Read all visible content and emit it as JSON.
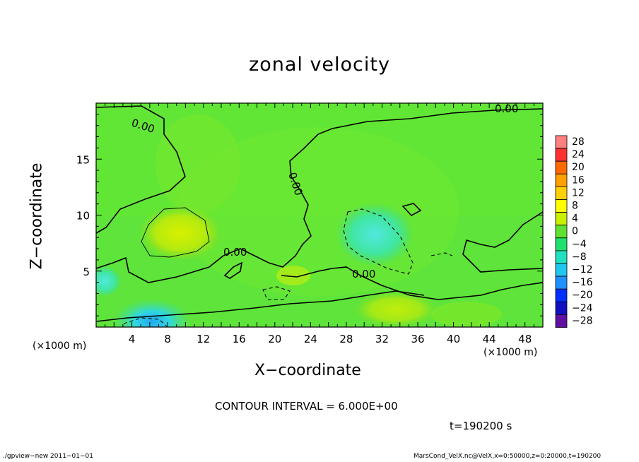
{
  "title": "zonal velocity",
  "chart_data": {
    "type": "heatmap",
    "title": "zonal velocity",
    "xlabel": "X−coordinate",
    "ylabel": "Z−coordinate",
    "x_unit": "(×1000 m)",
    "z_unit": "(×1000 m)",
    "xlim": [
      0,
      50
    ],
    "ylim": [
      0,
      20
    ],
    "x_ticks": [
      4,
      8,
      12,
      16,
      20,
      24,
      28,
      32,
      36,
      40,
      44,
      48
    ],
    "x_tick_labels": [
      "4",
      "8",
      "12",
      "16",
      "20",
      "24",
      "28",
      "32",
      "36",
      "40",
      "44",
      "48"
    ],
    "y_ticks": [
      5,
      10,
      15
    ],
    "y_tick_labels": [
      "5",
      "10",
      "15"
    ],
    "colorbar_levels": [
      28,
      24,
      20,
      16,
      12,
      8,
      4,
      0,
      -4,
      -8,
      -12,
      -16,
      -20,
      -24,
      -28
    ],
    "colorbar_labels": [
      "28",
      "24",
      "20",
      "16",
      "12",
      "8",
      "4",
      "0",
      "−4",
      "−8",
      "−12",
      "−16",
      "−20",
      "−24",
      "−28"
    ],
    "colorbar_colors": [
      "#ff8080",
      "#ff3030",
      "#ff6a00",
      "#ffa000",
      "#ffd000",
      "#ffff00",
      "#c8f000",
      "#60e030",
      "#20e070",
      "#20e0c0",
      "#20c8f0",
      "#1e90ff",
      "#0030ff",
      "#1010c0",
      "#6010a0"
    ],
    "contour_labels": [
      "0.00",
      "0.00",
      "0.00",
      "0.00",
      "0.00"
    ],
    "contour_interval": "CONTOUR INTERVAL = 6.000E+00",
    "time": "t=190200 s"
  },
  "footer": {
    "left": "./gpview−new   2011−01−01",
    "right": "MarsCond_VelX.nc@VelX,x=0:50000,z=0:20000,t=190200"
  }
}
